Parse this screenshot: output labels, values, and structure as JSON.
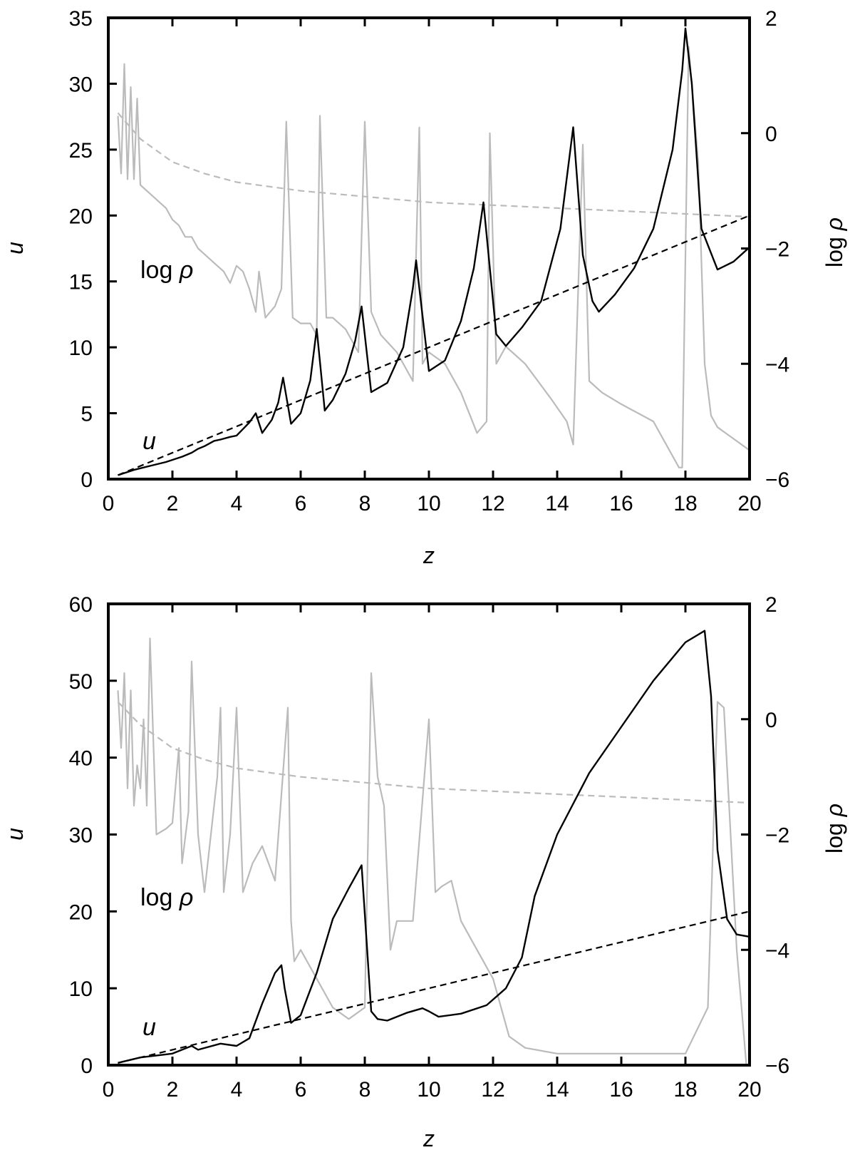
{
  "chart_data": [
    {
      "type": "line",
      "panel": "top",
      "xlabel": "z",
      "ylabel_left": "u",
      "ylabel_right": "log ρ",
      "ylabel_right_text": "log ",
      "ylabel_right_sym": "ρ",
      "xlim": [
        0,
        20
      ],
      "ylim_left": [
        0,
        35
      ],
      "ylim_right": [
        -6,
        2
      ],
      "x_ticks": [
        "0",
        "2",
        "4",
        "6",
        "8",
        "10",
        "12",
        "14",
        "16",
        "18",
        "20"
      ],
      "y_left_ticks": [
        "0",
        "5",
        "10",
        "15",
        "20",
        "25",
        "30",
        "35"
      ],
      "y_right_ticks": [
        "−6",
        "−4",
        "−2",
        "0",
        "2"
      ],
      "annotations": {
        "u": "u",
        "logrho_text": "log ",
        "logrho_sym": "ρ"
      },
      "colors": {
        "u": "#000000",
        "logrho": "#bbbbbb",
        "u_ref": "#000000",
        "logrho_ref": "#bbbbbb"
      },
      "series": [
        {
          "name": "u",
          "axis": "left",
          "style": "solid",
          "x": [
            0.3,
            0.8,
            1.3,
            1.8,
            2.3,
            2.6,
            2.8,
            3.0,
            3.3,
            3.5,
            3.8,
            4.0,
            4.2,
            4.4,
            4.6,
            4.8,
            5.1,
            5.3,
            5.45,
            5.7,
            6.0,
            6.3,
            6.5,
            6.75,
            7.0,
            7.4,
            7.7,
            7.9,
            8.2,
            8.7,
            9.2,
            9.5,
            9.6,
            10.0,
            10.5,
            11.0,
            11.4,
            11.7,
            12.1,
            12.4,
            12.9,
            13.5,
            14.1,
            14.5,
            14.8,
            15.1,
            15.3,
            15.8,
            16.4,
            17.0,
            17.6,
            17.9,
            18.0,
            18.2,
            18.5,
            19.0,
            19.5,
            20.0
          ],
          "y": [
            0.3,
            0.7,
            1.0,
            1.3,
            1.7,
            2.0,
            2.3,
            2.5,
            2.9,
            3.0,
            3.2,
            3.3,
            3.8,
            4.3,
            5.0,
            3.5,
            4.5,
            5.8,
            7.7,
            4.2,
            5.0,
            7.5,
            11.4,
            5.2,
            6.0,
            8.0,
            10.5,
            13.1,
            6.6,
            7.3,
            10.0,
            14.5,
            16.6,
            8.2,
            9.0,
            12.0,
            16.0,
            21.0,
            11.0,
            10.1,
            11.5,
            13.5,
            19.0,
            26.7,
            17.0,
            13.5,
            12.7,
            14.0,
            16.0,
            19.0,
            25.0,
            31.0,
            34.2,
            30.0,
            19.0,
            15.9,
            16.5,
            17.6
          ]
        },
        {
          "name": "u reference",
          "axis": "left",
          "style": "dashed",
          "x": [
            0.3,
            20.0
          ],
          "y": [
            0.3,
            20.0
          ]
        },
        {
          "name": "log ρ",
          "axis": "right",
          "style": "solid",
          "x": [
            0.3,
            0.4,
            0.5,
            0.6,
            0.7,
            0.8,
            0.9,
            1.0,
            1.2,
            1.4,
            1.6,
            1.8,
            2.0,
            2.2,
            2.4,
            2.6,
            2.8,
            3.0,
            3.2,
            3.4,
            3.6,
            3.8,
            4.0,
            4.2,
            4.4,
            4.6,
            4.7,
            4.9,
            5.2,
            5.4,
            5.55,
            5.75,
            6.0,
            6.3,
            6.5,
            6.6,
            6.8,
            7.0,
            7.4,
            7.8,
            8.0,
            8.2,
            8.5,
            9.0,
            9.5,
            9.7,
            9.8,
            10.0,
            10.5,
            11.0,
            11.5,
            11.8,
            11.9,
            12.1,
            12.4,
            13.0,
            13.8,
            14.3,
            14.5,
            14.8,
            15.0,
            15.4,
            16.0,
            17.0,
            17.8,
            17.9,
            18.1,
            18.4,
            18.6,
            18.8,
            19.0,
            19.5,
            20.0
          ],
          "y": [
            0.3,
            -0.7,
            1.2,
            -0.8,
            0.8,
            -0.8,
            0.6,
            -0.9,
            -1.0,
            -1.1,
            -1.2,
            -1.3,
            -1.5,
            -1.6,
            -1.8,
            -1.8,
            -2.0,
            -2.1,
            -2.2,
            -2.3,
            -2.4,
            -2.6,
            -2.3,
            -2.4,
            -2.7,
            -3.1,
            -2.4,
            -3.2,
            -3.0,
            -2.7,
            0.2,
            -3.2,
            -3.3,
            -3.3,
            -3.5,
            0.3,
            -3.2,
            -3.2,
            -3.4,
            -3.8,
            0.2,
            -3.1,
            -3.5,
            -3.8,
            -4.3,
            0.1,
            -4.0,
            -3.8,
            -4.0,
            -4.5,
            -5.2,
            -5.0,
            0.0,
            -4.0,
            -3.7,
            -4.0,
            -4.6,
            -5.0,
            -5.4,
            -0.2,
            -4.3,
            -4.5,
            -4.7,
            -5.0,
            -5.8,
            -5.8,
            1.5,
            -0.5,
            -4.0,
            -4.9,
            -5.1,
            -5.3,
            -5.5
          ]
        },
        {
          "name": "log ρ reference",
          "axis": "right",
          "style": "dashed",
          "x": [
            0.3,
            1,
            2,
            3,
            4,
            6,
            8,
            10,
            12,
            14,
            16,
            18,
            20
          ],
          "y": [
            0.35,
            -0.1,
            -0.5,
            -0.7,
            -0.85,
            -1.0,
            -1.1,
            -1.2,
            -1.25,
            -1.3,
            -1.35,
            -1.4,
            -1.45
          ]
        }
      ]
    },
    {
      "type": "line",
      "panel": "bottom",
      "xlabel": "z",
      "ylabel_left": "u",
      "ylabel_right": "log ρ",
      "ylabel_right_text": "log ",
      "ylabel_right_sym": "ρ",
      "xlim": [
        0,
        20
      ],
      "ylim_left": [
        0,
        60
      ],
      "ylim_right": [
        -6,
        2
      ],
      "x_ticks": [
        "0",
        "2",
        "4",
        "6",
        "8",
        "10",
        "12",
        "14",
        "16",
        "18",
        "20"
      ],
      "y_left_ticks": [
        "0",
        "10",
        "20",
        "30",
        "40",
        "50",
        "60"
      ],
      "y_right_ticks": [
        "−6",
        "−4",
        "−2",
        "0",
        "2"
      ],
      "annotations": {
        "u": "u",
        "logrho_text": "log ",
        "logrho_sym": "ρ"
      },
      "colors": {
        "u": "#000000",
        "logrho": "#bbbbbb",
        "u_ref": "#000000",
        "logrho_ref": "#bbbbbb"
      },
      "series": [
        {
          "name": "u",
          "axis": "left",
          "style": "solid",
          "x": [
            0.3,
            1.0,
            2.0,
            2.6,
            2.8,
            3.5,
            4.0,
            4.4,
            4.8,
            5.2,
            5.4,
            5.5,
            5.7,
            6.0,
            6.5,
            7.0,
            7.5,
            7.9,
            8.2,
            8.4,
            8.7,
            9.3,
            9.8,
            10.0,
            10.3,
            11.0,
            11.8,
            12.4,
            12.9,
            13.3,
            14.0,
            15.0,
            16.0,
            17.0,
            18.0,
            18.6,
            18.8,
            19.0,
            19.3,
            19.6,
            20.0
          ],
          "y": [
            0.3,
            1.0,
            1.5,
            2.5,
            2.0,
            2.8,
            2.5,
            3.5,
            8.0,
            12.0,
            13.0,
            10.0,
            5.5,
            6.5,
            12.0,
            19.0,
            23.0,
            26.0,
            7.0,
            6.0,
            5.8,
            6.8,
            7.4,
            7.0,
            6.3,
            6.7,
            7.8,
            10.0,
            14.0,
            22.0,
            30.0,
            38.0,
            44.0,
            50.0,
            55.0,
            56.5,
            48.0,
            28.0,
            19.0,
            17.0,
            16.7
          ]
        },
        {
          "name": "u reference",
          "axis": "left",
          "style": "dashed",
          "x": [
            0.3,
            20.0
          ],
          "y": [
            0.3,
            20.0
          ]
        },
        {
          "name": "log ρ",
          "axis": "right",
          "style": "solid",
          "x": [
            0.3,
            0.4,
            0.5,
            0.6,
            0.7,
            0.8,
            0.9,
            1.0,
            1.1,
            1.2,
            1.3,
            1.5,
            1.8,
            2.0,
            2.2,
            2.3,
            2.5,
            2.6,
            2.8,
            3.0,
            3.2,
            3.4,
            3.5,
            3.6,
            3.8,
            4.0,
            4.2,
            4.5,
            4.8,
            5.2,
            5.6,
            5.7,
            5.8,
            6.0,
            6.5,
            7.0,
            7.5,
            8.0,
            8.2,
            8.4,
            8.6,
            8.8,
            9.0,
            9.5,
            10.0,
            10.2,
            10.4,
            10.7,
            11.0,
            11.5,
            12.0,
            12.5,
            13.0,
            14.0,
            16.0,
            18.0,
            18.7,
            19.0,
            19.2,
            19.6,
            19.9
          ],
          "y": [
            0.5,
            -0.5,
            0.8,
            -1.2,
            0.5,
            -1.5,
            -0.8,
            -1.2,
            0.0,
            -1.5,
            1.4,
            -2.0,
            -1.9,
            -1.8,
            -0.5,
            -2.5,
            -1.6,
            1.0,
            -2.0,
            -3.0,
            -2.0,
            -1.0,
            0.2,
            -3.0,
            -2.0,
            0.2,
            -3.0,
            -2.5,
            -2.2,
            -2.8,
            0.2,
            -3.5,
            -4.2,
            -4.0,
            -4.5,
            -5.0,
            -5.2,
            -5.0,
            0.8,
            -1.0,
            -1.5,
            -4.0,
            -3.5,
            -3.5,
            0.0,
            -3.0,
            -2.9,
            -2.8,
            -3.5,
            -4.0,
            -4.5,
            -5.5,
            -5.7,
            -5.8,
            -5.8,
            -5.8,
            -5.0,
            0.3,
            0.2,
            -4.0,
            -6.0
          ]
        },
        {
          "name": "log ρ reference",
          "axis": "right",
          "style": "dashed",
          "x": [
            0.3,
            1,
            2,
            3,
            4,
            6,
            8,
            10,
            12,
            14,
            16,
            18,
            20
          ],
          "y": [
            0.3,
            -0.1,
            -0.5,
            -0.7,
            -0.85,
            -1.0,
            -1.1,
            -1.2,
            -1.25,
            -1.3,
            -1.35,
            -1.4,
            -1.45
          ]
        }
      ]
    }
  ]
}
